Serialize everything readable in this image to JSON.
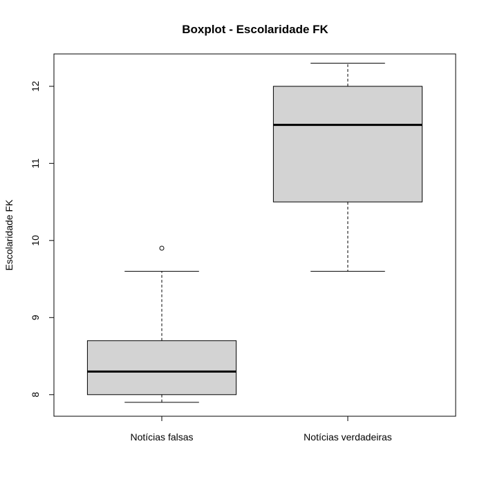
{
  "chart_data": {
    "type": "boxplot",
    "title": "Boxplot - Escolaridade FK",
    "xlabel": "",
    "ylabel": "Escolaridade FK",
    "ylim": [
      7.72,
      12.42
    ],
    "yticks": [
      "8",
      "9",
      "10",
      "11",
      "12"
    ],
    "grid": false,
    "box_fill": "#d3d3d3",
    "categories": [
      "Notícias falsas",
      "Notícias verdadeiras"
    ],
    "boxes": [
      {
        "whisker_low": 7.9,
        "q1": 8.0,
        "median": 8.3,
        "q3": 8.7,
        "whisker_high": 9.6,
        "outliers": [
          9.9
        ]
      },
      {
        "whisker_low": 9.6,
        "q1": 10.5,
        "median": 11.5,
        "q3": 12.0,
        "whisker_high": 12.3,
        "outliers": []
      }
    ]
  }
}
